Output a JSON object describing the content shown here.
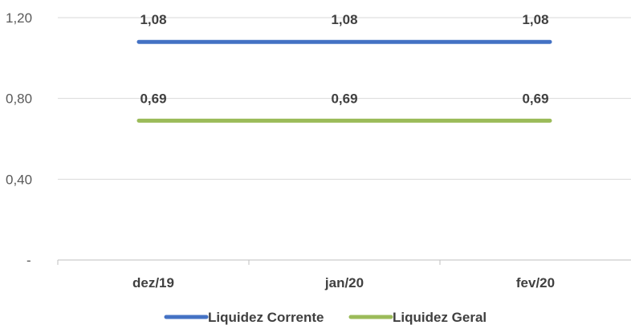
{
  "chart_data": {
    "type": "line",
    "categories": [
      "dez/19",
      "jan/20",
      "fev/20"
    ],
    "series": [
      {
        "name": "Liquidez Corrente",
        "values": [
          1.08,
          1.08,
          1.08
        ],
        "labels": [
          "1,08",
          "1,08",
          "1,08"
        ],
        "color": "#4472C4"
      },
      {
        "name": "Liquidez Geral",
        "values": [
          0.69,
          0.69,
          0.69
        ],
        "labels": [
          "0,69",
          "0,69",
          "0,69"
        ],
        "color": "#9BBB59"
      }
    ],
    "y_ticks": [
      {
        "value": 1.2,
        "label": "1,20"
      },
      {
        "value": 0.8,
        "label": "0,80"
      },
      {
        "value": 0.4,
        "label": "0,40"
      },
      {
        "value": 0,
        "label": "-"
      }
    ],
    "ylim": [
      0,
      1.2
    ],
    "grid": true,
    "legend": "bottom",
    "title": "",
    "xlabel": "",
    "ylabel": ""
  }
}
